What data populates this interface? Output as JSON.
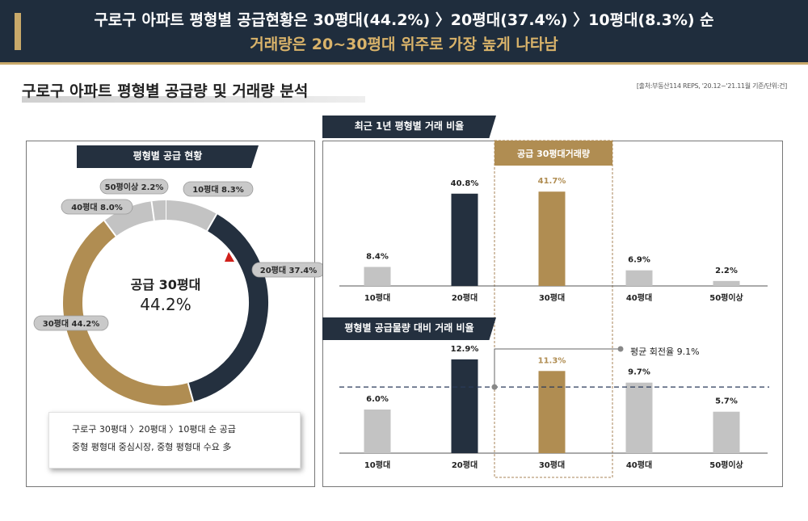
{
  "header": {
    "line1": "구로구 아파트 평형별 공급현황은 30평대(44.2%) 〉20평대(37.4%) 〉10평대(8.3%) 순",
    "line2": "거래량은 20~30평대 위주로 가장 높게 나타남"
  },
  "section": {
    "title": "구로구 아파트 평형별 공급량 및 거래량 분석",
    "source": "[출처:부동산114 REPS, '20.12~'21.11월 기준/단위:건]"
  },
  "donut": {
    "tab": "평형별 공급 현황",
    "center_title": "공급 30평대",
    "center_value": "44.2%",
    "labels": [
      "10평대 8.3%",
      "20평대 37.4%",
      "30평대 44.2%",
      "40평대 8.0%",
      "50평이상 2.2%"
    ]
  },
  "note": {
    "line1": "구로구 30평대 〉20평대 〉10평대 순 공급",
    "line2": "중형 평형대 중심시장, 중형 평형대 수요 多"
  },
  "charts": {
    "tab_top": "최근 1년 평형별 거래 비율",
    "highlight_label": "공급 30평대거래량",
    "tab_bottom": "평형별 공급물량 대비 거래 비율",
    "avg_label": "평균 회전율 9.1%"
  },
  "colors": {
    "navy": "#24303f",
    "gold": "#b08d52",
    "gray": "#c3c3c3",
    "header_bg": "#1f2d3d",
    "header_accent": "#d9b36a",
    "red_marker": "#d0201a"
  },
  "chart_data": [
    {
      "type": "pie",
      "categories": [
        "10평대",
        "20평대",
        "30평대",
        "40평대",
        "50평이상"
      ],
      "values": [
        8.3,
        37.4,
        44.2,
        8.0,
        2.2
      ],
      "unit": "%"
    },
    {
      "type": "bar",
      "title": "최근 1년 평형별 거래 비율",
      "categories": [
        "10평대",
        "20평대",
        "30평대",
        "40평대",
        "50평이상"
      ],
      "values": [
        8.4,
        40.8,
        41.7,
        6.9,
        2.2
      ],
      "value_labels": [
        "8.4%",
        "40.8%",
        "41.7%",
        "6.9%",
        "2.2%"
      ],
      "unit": "%"
    },
    {
      "type": "bar",
      "title": "평형별 공급물량 대비 거래 비율",
      "categories": [
        "10평대",
        "20평대",
        "30평대",
        "40평대",
        "50평이상"
      ],
      "values": [
        6.0,
        12.9,
        11.3,
        9.7,
        5.7
      ],
      "value_labels": [
        "6.0%",
        "12.9%",
        "11.3%",
        "9.7%",
        "5.7%"
      ],
      "unit": "%",
      "reference_line": {
        "label": "평균 회전율 9.1%",
        "value": 9.1
      }
    }
  ]
}
